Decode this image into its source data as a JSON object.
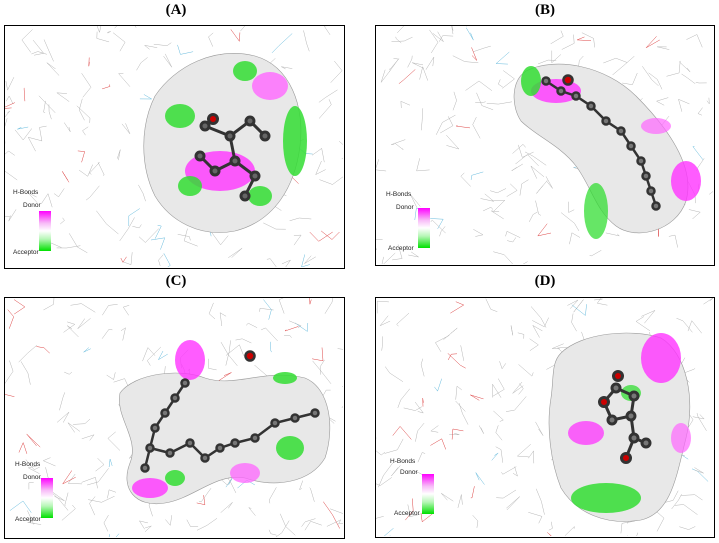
{
  "panels": [
    {
      "label": "(A)",
      "legend": {
        "title": "H-Bonds",
        "top": "Donor",
        "bottom": "Acceptor"
      }
    },
    {
      "label": "(B)",
      "legend": {
        "title": "H-Bonds",
        "top": "Donor",
        "bottom": "Acceptor"
      }
    },
    {
      "label": "(C)",
      "legend": {
        "title": "H-Bonds",
        "top": "Donor",
        "bottom": "Acceptor"
      }
    },
    {
      "label": "(D)",
      "legend": {
        "title": "H-Bonds",
        "top": "Donor",
        "bottom": "Acceptor"
      }
    }
  ],
  "colors": {
    "donor": "#ff00ff",
    "acceptor": "#00e000",
    "neutral": "#ffffff",
    "atom": "#555555",
    "oxygen": "#cc0000"
  }
}
